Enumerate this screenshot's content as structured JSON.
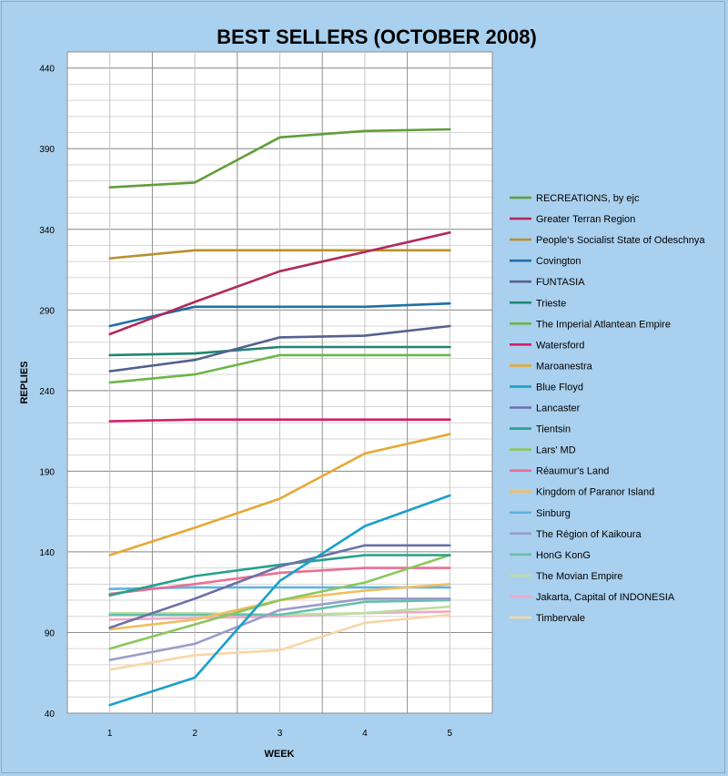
{
  "chart_data": {
    "type": "line",
    "title": "BEST SELLERS (OCTOBER 2008)",
    "xlabel": "WEEK",
    "ylabel": "REPLIES",
    "x": [
      1,
      2,
      3,
      4,
      5
    ],
    "x_ticks": [
      "1",
      "2",
      "3",
      "4",
      "5"
    ],
    "ylim": [
      40,
      450
    ],
    "y_ticks": [
      "40",
      "90",
      "140",
      "190",
      "240",
      "290",
      "340",
      "390",
      "440"
    ],
    "y_tick_values": [
      40,
      90,
      140,
      190,
      240,
      290,
      340,
      390,
      440
    ],
    "grid": true,
    "legend_position": "right",
    "series": [
      {
        "name": "RECREATIONS, by ejc",
        "color": "#5f9e3a",
        "values": [
          366,
          369,
          397,
          401,
          402
        ]
      },
      {
        "name": "Greater Terran Region",
        "color": "#b02a5c",
        "values": [
          275,
          295,
          314,
          326,
          338
        ]
      },
      {
        "name": "People's Socialist State of Odeschnya",
        "color": "#b8912e",
        "values": [
          322,
          327,
          327,
          327,
          327
        ]
      },
      {
        "name": "Covington",
        "color": "#1f6fa3",
        "values": [
          280,
          292,
          292,
          292,
          294
        ]
      },
      {
        "name": "FUNTASIA",
        "color": "#55618f",
        "values": [
          252,
          259,
          273,
          274,
          280
        ]
      },
      {
        "name": "Trieste",
        "color": "#1e8571",
        "values": [
          262,
          263,
          267,
          267,
          267
        ]
      },
      {
        "name": "The Imperial Atlantean Empire",
        "color": "#6db647",
        "values": [
          245,
          250,
          262,
          262,
          262
        ]
      },
      {
        "name": "Watersford",
        "color": "#d21e6a",
        "values": [
          221,
          222,
          222,
          222,
          222
        ]
      },
      {
        "name": "Maroanestra",
        "color": "#e5a934",
        "values": [
          138,
          155,
          173,
          201,
          213
        ]
      },
      {
        "name": "Blue Floyd",
        "color": "#1aa0c8",
        "values": [
          45,
          62,
          122,
          156,
          175
        ]
      },
      {
        "name": "Lancaster",
        "color": "#6c70a8",
        "values": [
          93,
          111,
          131,
          144,
          144
        ]
      },
      {
        "name": "Tientsin",
        "color": "#27a08c",
        "values": [
          113,
          125,
          132,
          138,
          138
        ]
      },
      {
        "name": "Lars' MD",
        "color": "#8cc65c",
        "values": [
          80,
          95,
          110,
          121,
          138
        ]
      },
      {
        "name": "Réaumur's Land",
        "color": "#ea6f93",
        "values": [
          114,
          120,
          127,
          130,
          130
        ]
      },
      {
        "name": "Kingdom of Paranor  Island",
        "color": "#f1be62",
        "values": [
          92,
          98,
          110,
          116,
          120
        ]
      },
      {
        "name": "Sinburg",
        "color": "#5db3e0",
        "values": [
          117,
          118,
          118,
          118,
          118
        ]
      },
      {
        "name": "The Région of Kaikoura",
        "color": "#9a9cc9",
        "values": [
          73,
          83,
          104,
          111,
          111
        ]
      },
      {
        "name": "HonG KonG",
        "color": "#66c0ac",
        "values": [
          101,
          101,
          101,
          109,
          110
        ]
      },
      {
        "name": "The Movian Empire",
        "color": "#bcdea0",
        "values": [
          102,
          102,
          101,
          102,
          106
        ]
      },
      {
        "name": "Jakarta, Capital of INDONESIA",
        "color": "#f0a9c4",
        "values": [
          98,
          99,
          100,
          102,
          103
        ]
      },
      {
        "name": "Timbervale",
        "color": "#f9d6a6",
        "values": [
          67,
          76,
          79,
          96,
          101
        ]
      }
    ]
  }
}
